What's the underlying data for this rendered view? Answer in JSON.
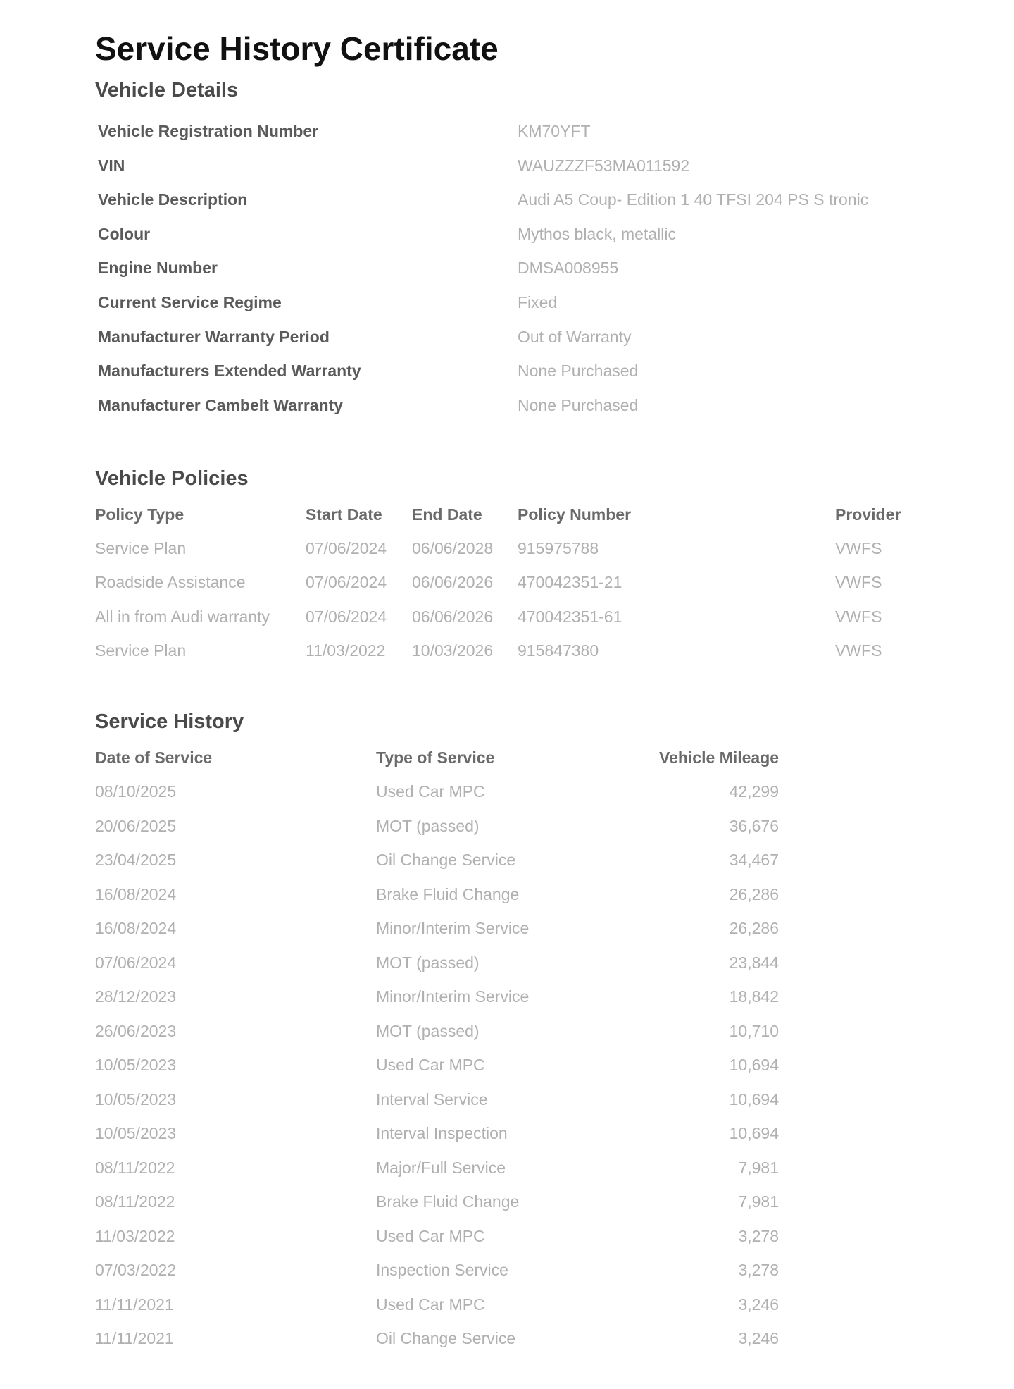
{
  "title": "Service History Certificate",
  "vehicle_details": {
    "heading": "Vehicle Details",
    "rows": [
      {
        "label": "Vehicle Registration Number",
        "value": "KM70YFT"
      },
      {
        "label": "VIN",
        "value": "WAUZZZF53MA011592"
      },
      {
        "label": "Vehicle Description",
        "value": "Audi A5 Coup- Edition 1 40 TFSI  204 PS S tronic"
      },
      {
        "label": "Colour",
        "value": "Mythos black, metallic"
      },
      {
        "label": "Engine Number",
        "value": "DMSA008955"
      },
      {
        "label": "Current Service Regime",
        "value": "Fixed"
      },
      {
        "label": "Manufacturer Warranty Period",
        "value": "Out of Warranty"
      },
      {
        "label": "Manufacturers Extended Warranty",
        "value": "None Purchased"
      },
      {
        "label": "Manufacturer Cambelt Warranty",
        "value": "None Purchased"
      }
    ]
  },
  "vehicle_policies": {
    "heading": "Vehicle Policies",
    "columns": [
      "Policy Type",
      "Start Date",
      "End Date",
      "Policy Number",
      "Provider"
    ],
    "rows": [
      [
        "Service Plan",
        "07/06/2024",
        "06/06/2028",
        "915975788",
        "VWFS"
      ],
      [
        "Roadside Assistance",
        "07/06/2024",
        "06/06/2026",
        "470042351-21",
        "VWFS"
      ],
      [
        "All in from Audi warranty",
        "07/06/2024",
        "06/06/2026",
        "470042351-61",
        "VWFS"
      ],
      [
        "Service Plan",
        "11/03/2022",
        "10/03/2026",
        "915847380",
        "VWFS"
      ]
    ]
  },
  "service_history": {
    "heading": "Service History",
    "columns": [
      "Date of Service",
      "Type of Service",
      "Vehicle Mileage"
    ],
    "rows": [
      [
        "08/10/2025",
        "Used Car MPC",
        "42,299"
      ],
      [
        "20/06/2025",
        "MOT (passed)",
        "36,676"
      ],
      [
        "23/04/2025",
        "Oil Change Service",
        "34,467"
      ],
      [
        "16/08/2024",
        "Brake Fluid Change",
        "26,286"
      ],
      [
        "16/08/2024",
        "Minor/Interim Service",
        "26,286"
      ],
      [
        "07/06/2024",
        "MOT (passed)",
        "23,844"
      ],
      [
        "28/12/2023",
        "Minor/Interim Service",
        "18,842"
      ],
      [
        "26/06/2023",
        "MOT (passed)",
        "10,710"
      ],
      [
        "10/05/2023",
        "Used Car MPC",
        "10,694"
      ],
      [
        "10/05/2023",
        "Interval Service",
        "10,694"
      ],
      [
        "10/05/2023",
        "Interval Inspection",
        "10,694"
      ],
      [
        "08/11/2022",
        "Major/Full Service",
        "7,981"
      ],
      [
        "08/11/2022",
        "Brake Fluid Change",
        "7,981"
      ],
      [
        "11/03/2022",
        "Used Car MPC",
        "3,278"
      ],
      [
        "07/03/2022",
        "Inspection Service",
        "3,278"
      ],
      [
        "11/11/2021",
        "Used Car MPC",
        "3,246"
      ],
      [
        "11/11/2021",
        "Oil Change Service",
        "3,246"
      ]
    ]
  }
}
